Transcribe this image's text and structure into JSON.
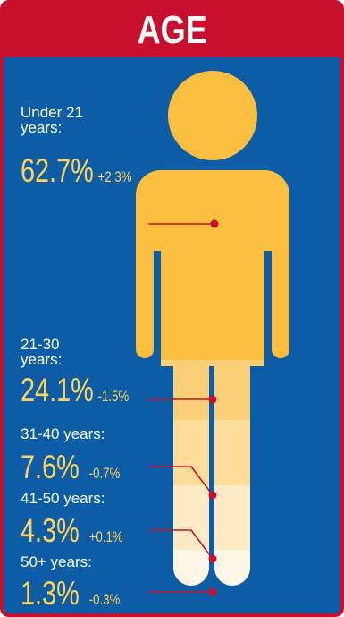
{
  "colors": {
    "background": "#0d5da6",
    "header": "#c8102e",
    "label_text": "#ffffff",
    "value_text": "#ffd25a",
    "leader_line": "#c8102e"
  },
  "chart_data": {
    "type": "pictogram",
    "title": "AGE",
    "categories": [
      "Under 21 years:",
      "21-30 years:",
      "31-40 years:",
      "41-50 years:",
      "50+ years:"
    ],
    "series": [
      {
        "name": "",
        "values": [
          62.7,
          24.1,
          7.6,
          4.3,
          1.3
        ]
      }
    ],
    "value_labels": [
      "62.7%",
      "24.1%",
      "7.6%",
      "4.3%",
      "1.3%"
    ],
    "change_labels": [
      "+2.3%",
      "-1.5%",
      "-0.7%",
      "+0.1%",
      "-0.3%"
    ],
    "segment_colors": [
      "#fbbf3f",
      "#fcd079",
      "#fddc9a",
      "#feebc6",
      "#fff7e6"
    ]
  }
}
